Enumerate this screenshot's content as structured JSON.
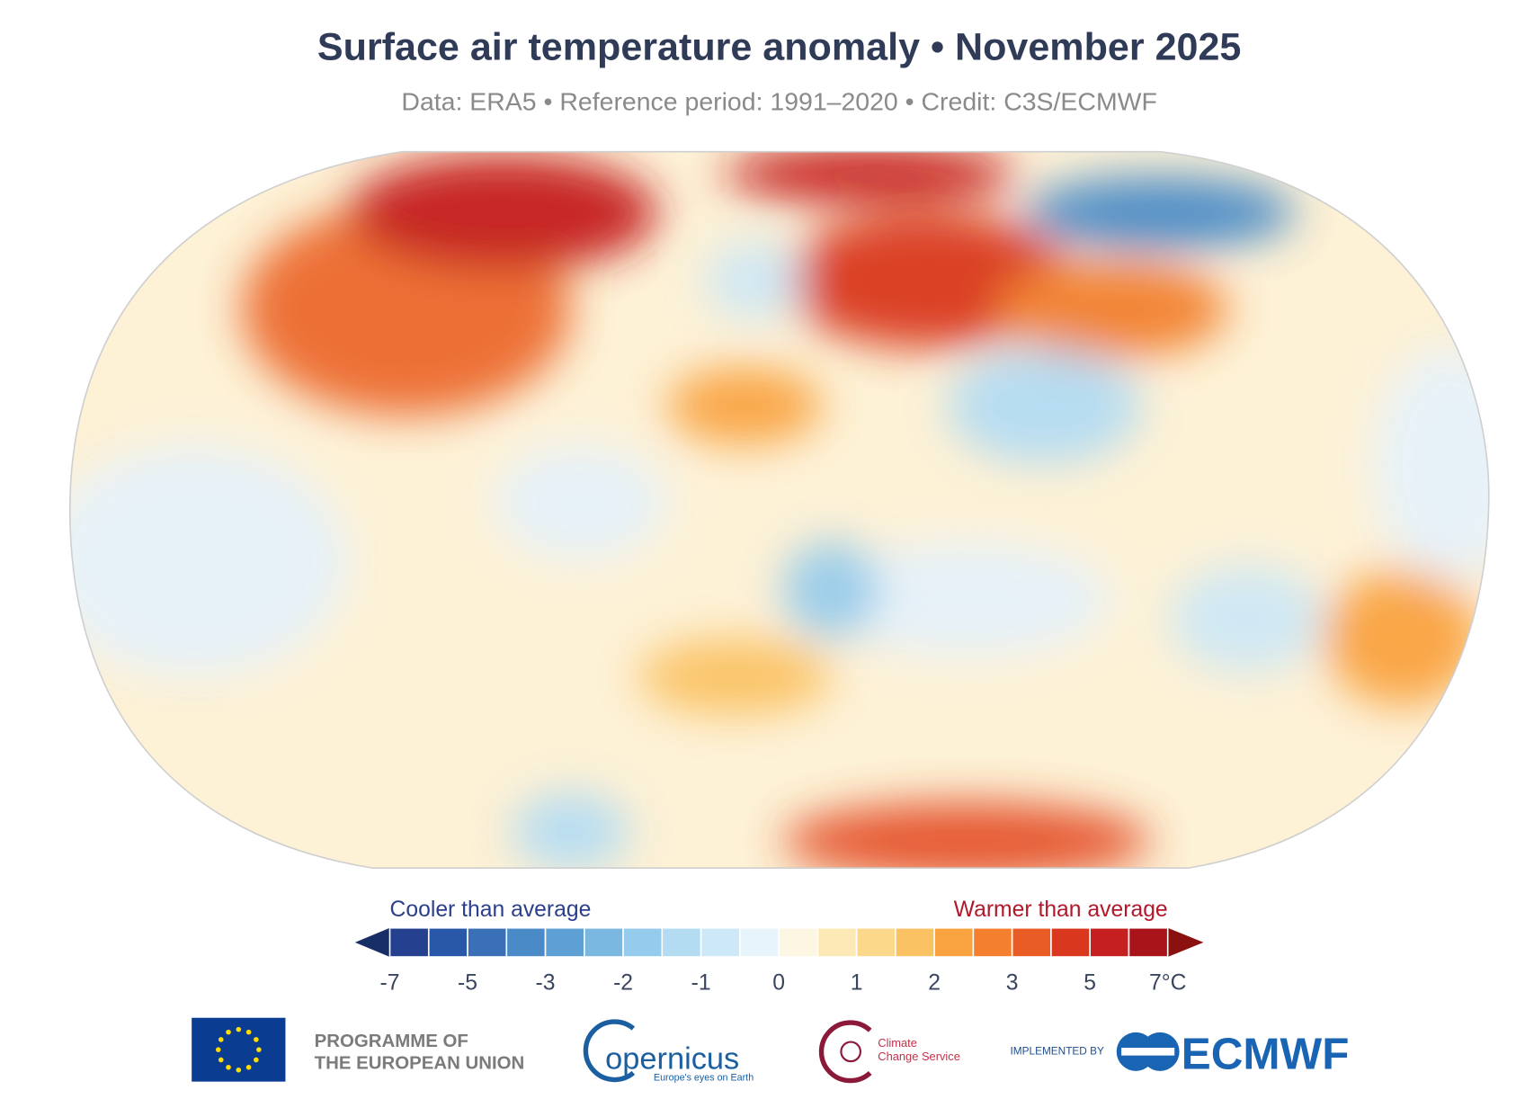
{
  "header": {
    "title": "Surface air temperature anomaly • November 2025",
    "subtitle": "Data: ERA5 • Reference period: 1991–2020 • Credit: C3S/ECMWF"
  },
  "legend": {
    "cooler_label": "Cooler than average",
    "warmer_label": "Warmer than average",
    "tick_labels": [
      "-7",
      "-5",
      "-3",
      "-2",
      "-1",
      "0",
      "1",
      "2",
      "3",
      "5",
      "7°C"
    ],
    "colors": [
      "#24408e",
      "#2a58a8",
      "#3a70b8",
      "#4a8ac6",
      "#5fa0d4",
      "#7ab8e2",
      "#95cbec",
      "#b3dcf3",
      "#cde8f6",
      "#e8f4fb",
      "#fdf6e3",
      "#fde9b5",
      "#fcd88a",
      "#fbc263",
      "#f9a340",
      "#f4802f",
      "#ea5c26",
      "#d9381f",
      "#c51f1f",
      "#a8141a"
    ],
    "arrow_colors": [
      "#182e66",
      "#8b1010"
    ]
  },
  "footer": {
    "eu_line1": "PROGRAMME OF",
    "eu_line2": "THE EUROPEAN UNION",
    "copernicus": "opernicus",
    "copernicus_tagline": "Europe's eyes on Earth",
    "c3s_line1": "Climate",
    "c3s_line2": "Change Service",
    "implemented_by": "IMPLEMENTED BY",
    "ecmwf": "ECMWF"
  }
}
